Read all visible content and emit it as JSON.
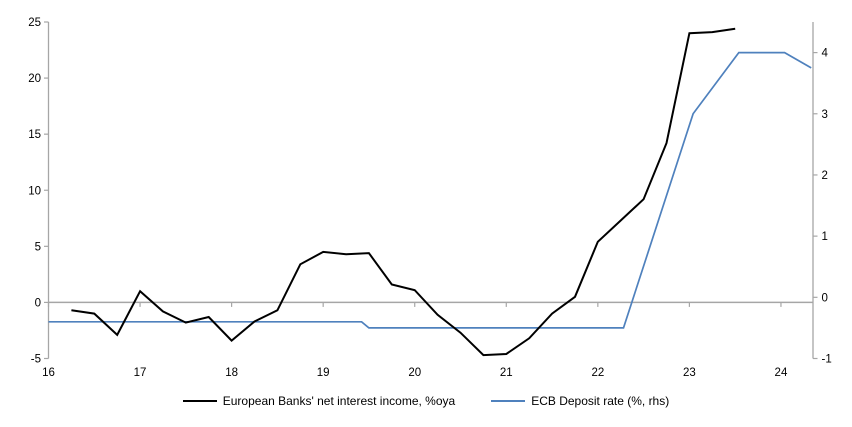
{
  "legend": {
    "series1_label": "European Banks' net interest income, %oya",
    "series2_label": "ECB Deposit rate (%, rhs)"
  },
  "colors": {
    "series1": "#000000",
    "series2": "#4f81bd",
    "axis": "#a6a6a6",
    "text": "#000000"
  },
  "chart_data": {
    "type": "line",
    "title": "",
    "x_axis": {
      "min": 16,
      "max": 24.35,
      "tick_labels": [
        "16",
        "17",
        "18",
        "19",
        "20",
        "21",
        "22",
        "23",
        "24"
      ],
      "tick_values": [
        16,
        17,
        18,
        19,
        20,
        21,
        22,
        23,
        24
      ]
    },
    "left_axis": {
      "min": -5,
      "max": 25,
      "tick_values": [
        -5,
        0,
        5,
        10,
        15,
        20,
        25
      ],
      "zero_line": true
    },
    "right_axis": {
      "min": -1,
      "max": 4.5,
      "tick_values": [
        -1,
        0,
        1,
        2,
        3,
        4
      ]
    },
    "series": [
      {
        "name": "ECB Deposit rate (%, rhs)",
        "axis": "right",
        "color": "#4f81bd",
        "width": 1.7,
        "points": [
          [
            16.0,
            -0.4
          ],
          [
            19.42,
            -0.4
          ],
          [
            19.5,
            -0.5
          ],
          [
            22.28,
            -0.5
          ],
          [
            23.04,
            3.0
          ],
          [
            23.54,
            4.0
          ],
          [
            24.04,
            4.0
          ],
          [
            24.33,
            3.75
          ]
        ]
      },
      {
        "name": "European Banks' net interest income, %oya",
        "axis": "left",
        "color": "#000000",
        "width": 2,
        "x": [
          16.25,
          16.5,
          16.75,
          17.0,
          17.25,
          17.5,
          17.75,
          18.0,
          18.25,
          18.5,
          18.75,
          19.0,
          19.25,
          19.5,
          19.75,
          20.0,
          20.25,
          20.5,
          20.75,
          21.0,
          21.25,
          21.5,
          21.75,
          22.0,
          22.25,
          22.5,
          22.75,
          23.0,
          23.25,
          23.5
        ],
        "values": [
          -0.7,
          -1.0,
          -2.9,
          1.0,
          -0.8,
          -1.8,
          -1.3,
          -3.4,
          -1.7,
          -0.7,
          3.4,
          4.5,
          4.3,
          4.4,
          1.6,
          1.1,
          -1.1,
          -2.7,
          -4.7,
          -4.6,
          -3.2,
          -1.0,
          0.5,
          5.4,
          7.3,
          9.2,
          14.2,
          24.0,
          24.1,
          24.4
        ]
      }
    ]
  }
}
